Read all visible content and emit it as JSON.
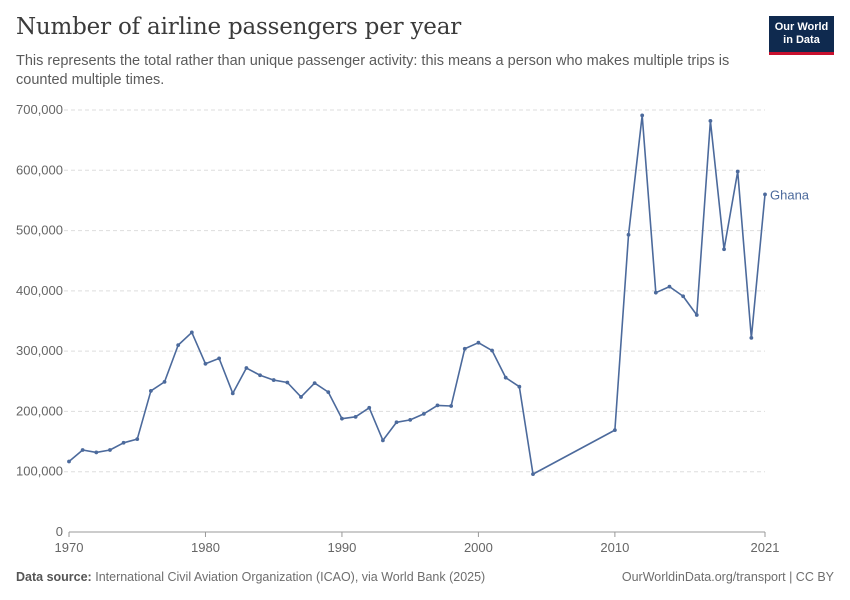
{
  "header": {
    "title": "Number of airline passengers per year",
    "subtitle": "This represents the total rather than unique passenger activity: this means a person who makes multiple trips is counted multiple times.",
    "logo_line1": "Our World",
    "logo_line2": "in Data"
  },
  "footer": {
    "source_label": "Data source:",
    "source_text": "International Civil Aviation Organization (ICAO), via World Bank (2025)",
    "right_text": "OurWorldinData.org/transport | CC BY"
  },
  "colors": {
    "line": "#4c6a9c",
    "grid": "#dddddd",
    "axis": "#999999",
    "logo_bg": "#0f2a4f",
    "logo_accent": "#c8102e"
  },
  "chart_data": {
    "type": "line",
    "title": "Number of airline passengers per year",
    "xlabel": "",
    "ylabel": "",
    "xlim": [
      1970,
      2021
    ],
    "ylim": [
      0,
      700000
    ],
    "grid": true,
    "y_ticks": [
      0,
      100000,
      200000,
      300000,
      400000,
      500000,
      600000,
      700000
    ],
    "y_tick_labels": [
      "0",
      "100,000",
      "200,000",
      "300,000",
      "400,000",
      "500,000",
      "600,000",
      "700,000"
    ],
    "x_ticks": [
      1970,
      1980,
      1990,
      2000,
      2010,
      2021
    ],
    "x_tick_labels": [
      "1970",
      "1980",
      "1990",
      "2000",
      "2010",
      "2021"
    ],
    "series": [
      {
        "name": "Ghana",
        "color": "#4c6a9c",
        "x": [
          1970,
          1971,
          1972,
          1973,
          1974,
          1975,
          1976,
          1977,
          1978,
          1979,
          1980,
          1981,
          1982,
          1983,
          1984,
          1985,
          1986,
          1987,
          1988,
          1989,
          1990,
          1991,
          1992,
          1993,
          1994,
          1995,
          1996,
          1997,
          1998,
          1999,
          2000,
          2001,
          2002,
          2003,
          2004,
          2010,
          2011,
          2012,
          2013,
          2014,
          2015,
          2016,
          2017,
          2018,
          2019,
          2020,
          2021
        ],
        "y": [
          117000,
          136000,
          132000,
          136000,
          148000,
          154000,
          234000,
          249000,
          310000,
          331000,
          279000,
          288000,
          230000,
          272000,
          260000,
          252000,
          248000,
          224000,
          247000,
          232000,
          188000,
          191000,
          206000,
          152000,
          182000,
          186000,
          196000,
          210000,
          209000,
          304000,
          314000,
          301000,
          256000,
          241000,
          96000,
          169000,
          493000,
          691000,
          397000,
          407000,
          391000,
          360000,
          682000,
          469000,
          598000,
          322000,
          560000
        ]
      }
    ]
  }
}
